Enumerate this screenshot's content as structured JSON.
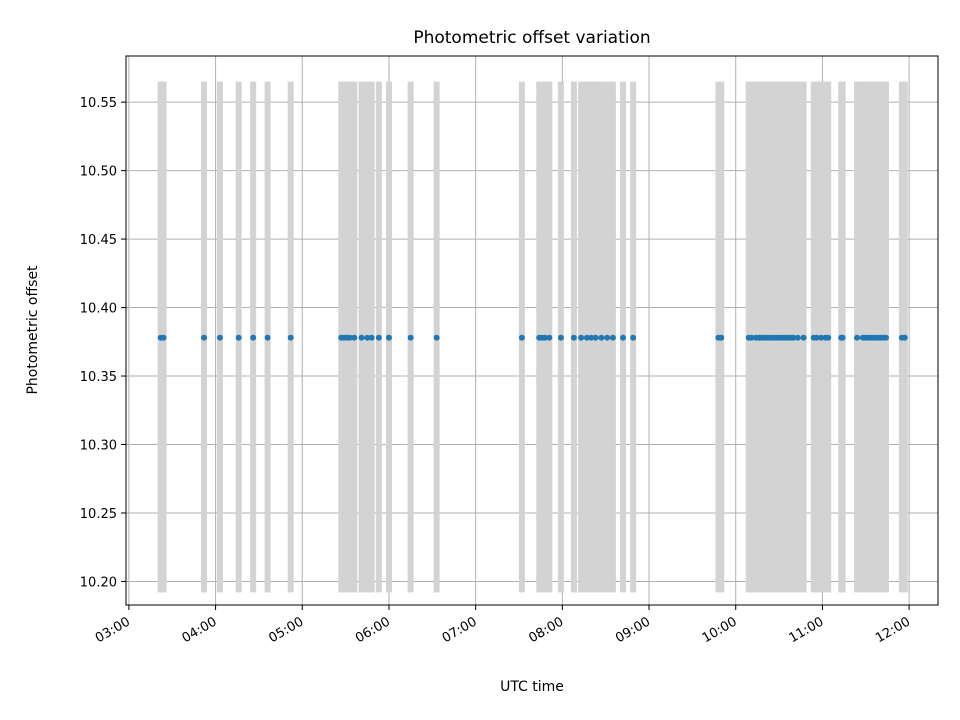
{
  "chart_data": {
    "type": "scatter",
    "title": "Photometric offset variation",
    "xlabel": "UTC time",
    "ylabel": "Photometric offset",
    "xlim": [
      "02:58",
      "12:20"
    ],
    "ylim": [
      10.1828,
      10.5837
    ],
    "grid": true,
    "x_ticks": [
      "03:00",
      "04:00",
      "05:00",
      "06:00",
      "07:00",
      "08:00",
      "09:00",
      "10:00",
      "11:00",
      "12:00"
    ],
    "y_ticks": [
      "10.20",
      "10.25",
      "10.30",
      "10.35",
      "10.40",
      "10.45",
      "10.50",
      "10.55"
    ],
    "series": [
      {
        "color": "#1f77b4",
        "errorbar_color": "#d3d3d3",
        "x": [
          "03:22",
          "03:24",
          "03:52",
          "04:03",
          "04:16",
          "04:26",
          "04:36",
          "04:52",
          "05:27",
          "05:29",
          "05:31",
          "05:33",
          "05:36",
          "05:41",
          "05:45",
          "05:48",
          "05:53",
          "06:00",
          "06:15",
          "06:33",
          "07:32",
          "07:44",
          "07:46",
          "07:48",
          "07:51",
          "07:59",
          "08:08",
          "08:13",
          "08:17",
          "08:20",
          "08:23",
          "08:27",
          "08:31",
          "08:35",
          "08:42",
          "08:49",
          "09:48",
          "09:50",
          "10:09",
          "10:11",
          "10:14",
          "10:16",
          "10:18",
          "10:20",
          "10:22",
          "10:24",
          "10:26",
          "10:28",
          "10:30",
          "10:32",
          "10:34",
          "10:36",
          "10:38",
          "10:40",
          "10:43",
          "10:47",
          "10:54",
          "10:56",
          "10:59",
          "11:02",
          "11:04",
          "11:13",
          "11:14",
          "11:24",
          "11:28",
          "11:30",
          "11:32",
          "11:34",
          "11:36",
          "11:38",
          "11:40",
          "11:42",
          "11:44",
          "11:55",
          "11:57"
        ],
        "y": 10.378,
        "yerr_low": 10.192,
        "yerr_high": 10.565
      }
    ]
  }
}
